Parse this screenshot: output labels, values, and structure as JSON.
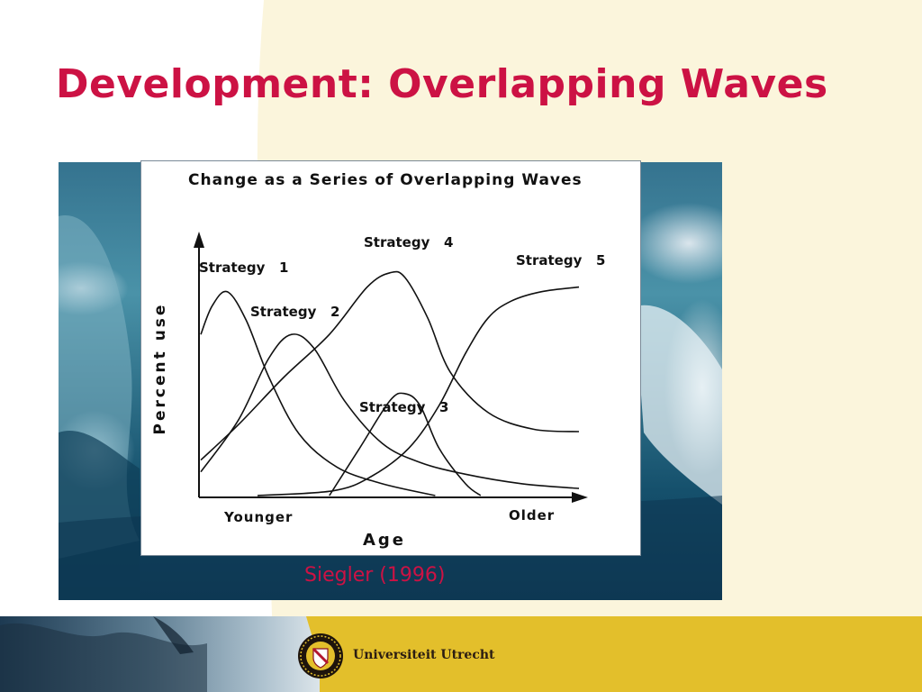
{
  "slide": {
    "title": "Development: Overlapping Waves",
    "citation": "Siegler (1996)",
    "logo_text": "Universiteit Utrecht"
  },
  "colors": {
    "title": "#cc1244",
    "cream": "#fbf5dc",
    "footer_yellow": "#e3bf2b"
  },
  "chart_data": {
    "type": "line",
    "title": "Change as a Series of Overlapping Waves",
    "xlabel": "Age",
    "ylabel": "Percent use",
    "x_tick_labels": [
      "Younger",
      "Older"
    ],
    "xlim": [
      0,
      100
    ],
    "ylim": [
      0,
      100
    ],
    "series": [
      {
        "name": "Strategy 1",
        "label": "Strategy   1",
        "x": [
          0,
          3,
          7,
          12,
          18,
          26,
          36,
          48,
          62
        ],
        "y": [
          68,
          80,
          86,
          74,
          50,
          26,
          12,
          5,
          0
        ]
      },
      {
        "name": "Strategy 2",
        "label": "Strategy   2",
        "x": [
          0,
          10,
          18,
          24,
          30,
          38,
          48,
          58,
          70,
          85,
          100
        ],
        "y": [
          10,
          32,
          58,
          68,
          62,
          40,
          22,
          14,
          9,
          5,
          3
        ]
      },
      {
        "name": "Strategy 3",
        "label": "Strategy   3",
        "x": [
          34,
          42,
          50,
          54,
          58,
          63,
          70,
          74
        ],
        "y": [
          0,
          20,
          40,
          43,
          38,
          20,
          5,
          0
        ]
      },
      {
        "name": "Strategy 4",
        "label": "Strategy   4",
        "x": [
          0,
          10,
          22,
          34,
          44,
          50,
          54,
          60,
          66,
          76,
          88,
          100
        ],
        "y": [
          15,
          30,
          50,
          68,
          88,
          94,
          92,
          75,
          52,
          35,
          28,
          27
        ]
      },
      {
        "name": "Strategy 5",
        "label": "Strategy   5",
        "x": [
          15,
          35,
          45,
          55,
          63,
          70,
          76,
          82,
          90,
          100
        ],
        "y": [
          0,
          2,
          8,
          20,
          38,
          60,
          75,
          82,
          86,
          88
        ]
      }
    ]
  }
}
